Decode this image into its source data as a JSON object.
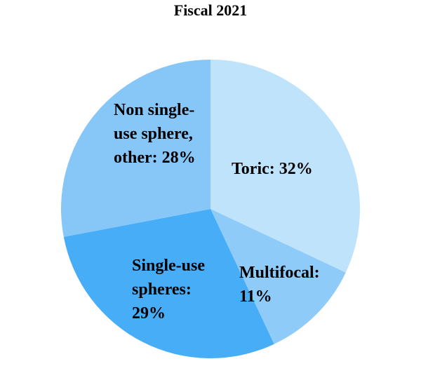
{
  "chart_data": {
    "type": "pie",
    "title": "Fiscal 2021",
    "categories": [
      "Toric",
      "Multifocal",
      "Single-use spheres",
      "Non single-use sphere, other"
    ],
    "values": [
      32,
      11,
      29,
      28
    ],
    "value_labels": [
      "Toric: 32%",
      "Multifocal: 11%",
      "Single-use spheres: 29%",
      "Non single-use sphere, other: 28%"
    ],
    "colors": [
      "#bfe3fb",
      "#8ecbf8",
      "#47adf7",
      "#87c7f8"
    ]
  }
}
